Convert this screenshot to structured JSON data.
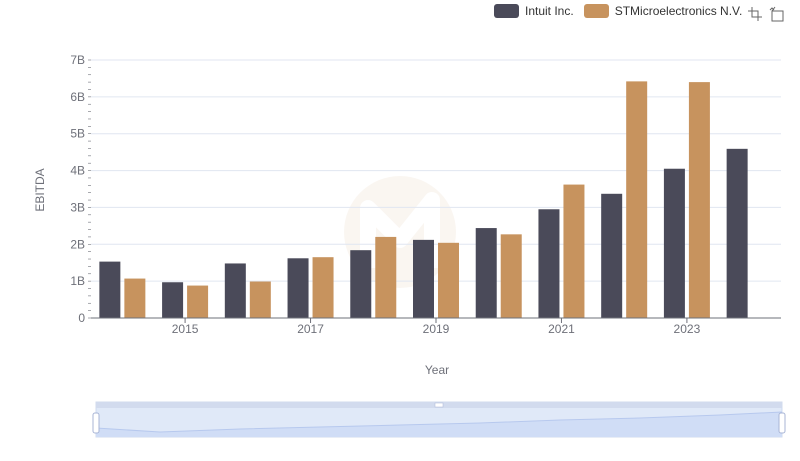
{
  "legend": {
    "intuit": "Intuit Inc.",
    "stm": "STMicroelectronics N.V."
  },
  "toolbar": {
    "icons": [
      "zoom-select-icon",
      "zoom-reset-icon"
    ]
  },
  "colors": {
    "intuit": "#4a4a59",
    "stm": "#c7935e",
    "grid": "#e0e6f1",
    "axis": "#6e7079"
  },
  "chart_data": {
    "type": "bar",
    "title": "",
    "xlabel": "Year",
    "ylabel": "EBITDA",
    "ylim": [
      0,
      7000000000
    ],
    "ytick_labels": [
      "0",
      "1B",
      "2B",
      "3B",
      "4B",
      "5B",
      "6B",
      "7B"
    ],
    "categories": [
      "2014",
      "2015",
      "2016",
      "2017",
      "2018",
      "2019",
      "2020",
      "2021",
      "2022",
      "2023",
      "2024"
    ],
    "xtick_labels": [
      "2015",
      "2017",
      "2019",
      "2021",
      "2023"
    ],
    "series": [
      {
        "name": "Intuit Inc.",
        "values": [
          1530000000,
          970000000,
          1480000000,
          1620000000,
          1840000000,
          2120000000,
          2440000000,
          2950000000,
          3370000000,
          4050000000,
          4590000000
        ]
      },
      {
        "name": "STMicroelectronics N.V.",
        "values": [
          1070000000,
          880000000,
          990000000,
          1650000000,
          2200000000,
          2040000000,
          2270000000,
          3620000000,
          6420000000,
          6400000000,
          null
        ]
      }
    ],
    "grid": true,
    "legend_position": "top-right"
  }
}
